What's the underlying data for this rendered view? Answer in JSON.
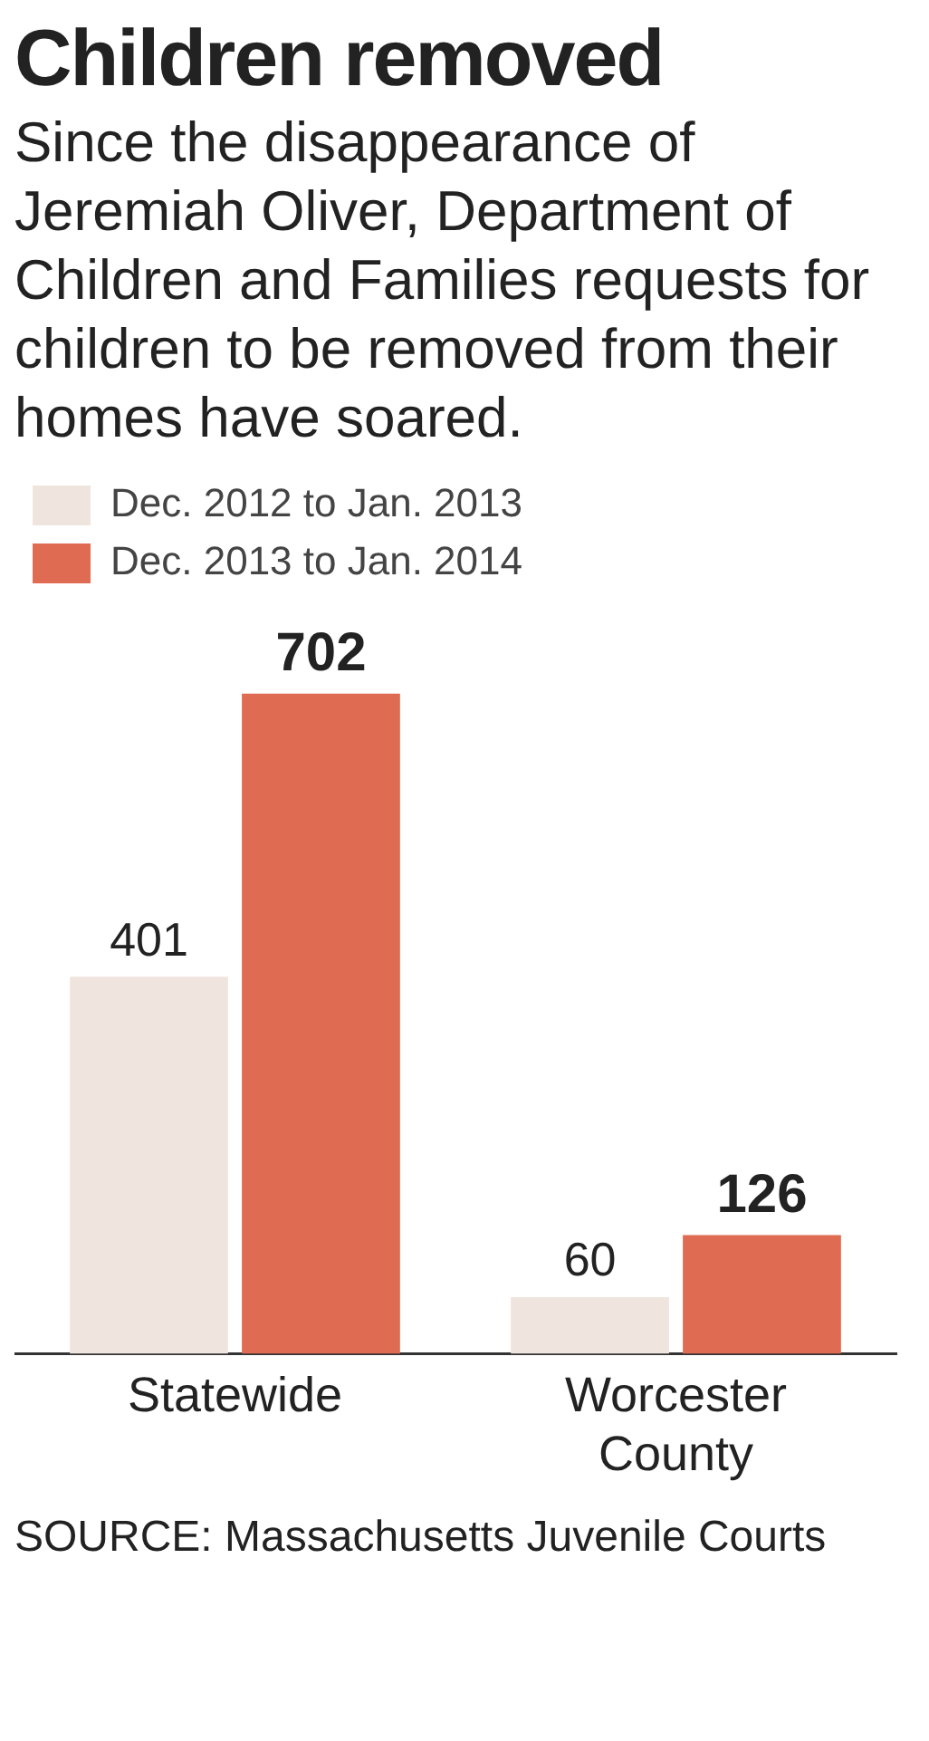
{
  "chart_data": {
    "type": "bar",
    "title": "Children removed",
    "subtitle": "Since the disappearance of Jeremiah Oliver, Department of Children and Families requests for children to be removed from their homes have soared.",
    "categories": [
      "Statewide",
      "Worcester County"
    ],
    "series": [
      {
        "name": "Dec. 2012 to Jan. 2013",
        "color": "#efe5de",
        "values": [
          401,
          60
        ]
      },
      {
        "name": "Dec. 2013 to Jan. 2014",
        "color": "#e06b53",
        "values": [
          702,
          126
        ]
      }
    ],
    "data_labels": true,
    "legend": "top left",
    "grid": false,
    "annotations": [
      "SOURCE: Massachusetts Juvenile Courts"
    ]
  }
}
